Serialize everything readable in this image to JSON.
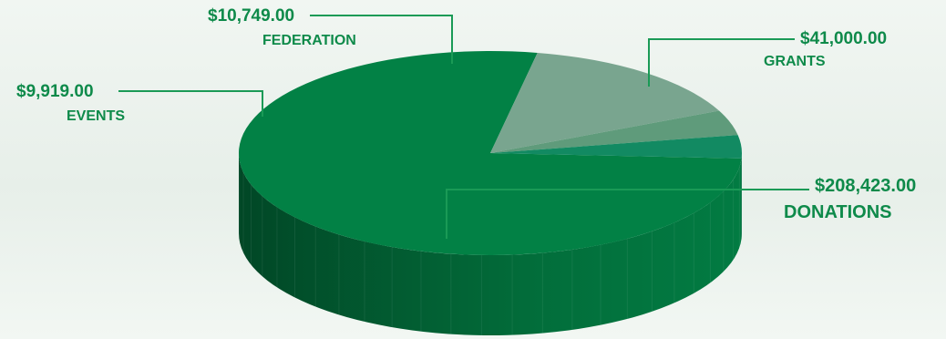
{
  "colors": {
    "accent_text": "#0e8a4a",
    "leader_line": "#1a9a56"
  },
  "chart_data": {
    "type": "pie",
    "title": "",
    "style": "3d",
    "slices": [
      {
        "label": "DONATIONS",
        "value_label": "$208,423.00",
        "value": 208423.0,
        "color": "#028145"
      },
      {
        "label": "GRANTS",
        "value_label": "$41,000.00",
        "value": 41000.0,
        "color": "#79a58f"
      },
      {
        "label": "FEDERATION",
        "value_label": "$10,749.00",
        "value": 10749.0,
        "color": "#5f9b7b"
      },
      {
        "label": "EVENTS",
        "value_label": "$9,919.00",
        "value": 9919.0,
        "color": "#128a62"
      }
    ]
  }
}
